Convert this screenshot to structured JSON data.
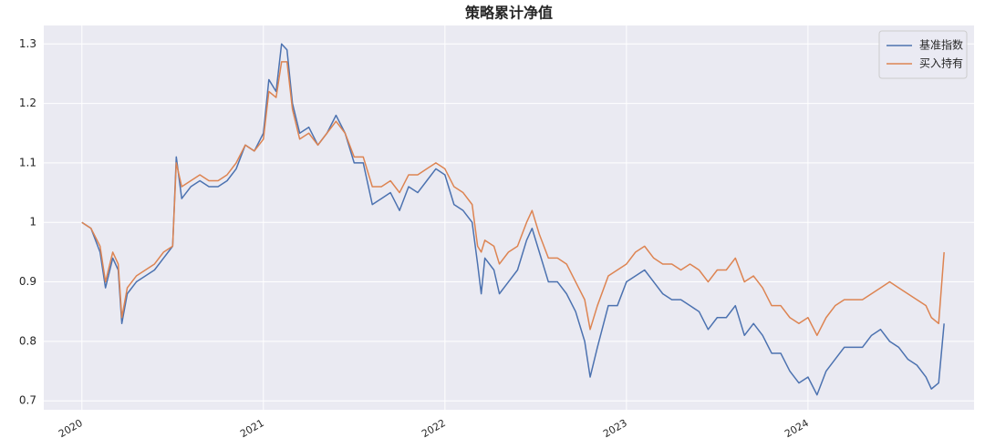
{
  "chart_data": {
    "type": "line",
    "title": "策略累计净值",
    "x": [
      2020.0,
      2020.05,
      2020.1,
      2020.13,
      2020.17,
      2020.2,
      2020.22,
      2020.25,
      2020.3,
      2020.35,
      2020.4,
      2020.45,
      2020.5,
      2020.52,
      2020.55,
      2020.6,
      2020.65,
      2020.7,
      2020.75,
      2020.8,
      2020.85,
      2020.9,
      2020.95,
      2021.0,
      2021.03,
      2021.07,
      2021.1,
      2021.13,
      2021.16,
      2021.2,
      2021.25,
      2021.3,
      2021.35,
      2021.4,
      2021.45,
      2021.5,
      2021.55,
      2021.6,
      2021.65,
      2021.7,
      2021.75,
      2021.8,
      2021.85,
      2021.9,
      2021.95,
      2022.0,
      2022.05,
      2022.1,
      2022.15,
      2022.18,
      2022.2,
      2022.22,
      2022.27,
      2022.3,
      2022.35,
      2022.4,
      2022.45,
      2022.48,
      2022.52,
      2022.57,
      2022.62,
      2022.67,
      2022.72,
      2022.77,
      2022.8,
      2022.84,
      2022.9,
      2022.95,
      2023.0,
      2023.05,
      2023.1,
      2023.15,
      2023.2,
      2023.25,
      2023.3,
      2023.35,
      2023.4,
      2023.45,
      2023.5,
      2023.55,
      2023.6,
      2023.65,
      2023.7,
      2023.75,
      2023.8,
      2023.85,
      2023.9,
      2023.95,
      2024.0,
      2024.05,
      2024.1,
      2024.15,
      2024.2,
      2024.25,
      2024.3,
      2024.35,
      2024.4,
      2024.45,
      2024.5,
      2024.55,
      2024.6,
      2024.65,
      2024.68,
      2024.72,
      2024.75
    ],
    "series": [
      {
        "name": "基准指数",
        "color": "#4c72b0",
        "values": [
          1.0,
          0.99,
          0.95,
          0.89,
          0.94,
          0.92,
          0.83,
          0.88,
          0.9,
          0.91,
          0.92,
          0.94,
          0.96,
          1.11,
          1.04,
          1.06,
          1.07,
          1.06,
          1.06,
          1.07,
          1.09,
          1.13,
          1.12,
          1.15,
          1.24,
          1.22,
          1.3,
          1.29,
          1.2,
          1.15,
          1.16,
          1.13,
          1.15,
          1.18,
          1.15,
          1.1,
          1.1,
          1.03,
          1.04,
          1.05,
          1.02,
          1.06,
          1.05,
          1.07,
          1.09,
          1.08,
          1.03,
          1.02,
          1.0,
          0.93,
          0.88,
          0.94,
          0.92,
          0.88,
          0.9,
          0.92,
          0.97,
          0.99,
          0.95,
          0.9,
          0.9,
          0.88,
          0.85,
          0.8,
          0.74,
          0.79,
          0.86,
          0.86,
          0.9,
          0.91,
          0.92,
          0.9,
          0.88,
          0.87,
          0.87,
          0.86,
          0.85,
          0.82,
          0.84,
          0.84,
          0.86,
          0.81,
          0.83,
          0.81,
          0.78,
          0.78,
          0.75,
          0.73,
          0.74,
          0.71,
          0.75,
          0.77,
          0.79,
          0.79,
          0.79,
          0.81,
          0.82,
          0.8,
          0.79,
          0.77,
          0.76,
          0.74,
          0.72,
          0.73,
          0.83
        ]
      },
      {
        "name": "买入持有",
        "color": "#dd8452",
        "values": [
          1.0,
          0.99,
          0.96,
          0.9,
          0.95,
          0.93,
          0.84,
          0.89,
          0.91,
          0.92,
          0.93,
          0.95,
          0.96,
          1.1,
          1.06,
          1.07,
          1.08,
          1.07,
          1.07,
          1.08,
          1.1,
          1.13,
          1.12,
          1.14,
          1.22,
          1.21,
          1.27,
          1.27,
          1.19,
          1.14,
          1.15,
          1.13,
          1.15,
          1.17,
          1.15,
          1.11,
          1.11,
          1.06,
          1.06,
          1.07,
          1.05,
          1.08,
          1.08,
          1.09,
          1.1,
          1.09,
          1.06,
          1.05,
          1.03,
          0.96,
          0.95,
          0.97,
          0.96,
          0.93,
          0.95,
          0.96,
          1.0,
          1.02,
          0.98,
          0.94,
          0.94,
          0.93,
          0.9,
          0.87,
          0.82,
          0.86,
          0.91,
          0.92,
          0.93,
          0.95,
          0.96,
          0.94,
          0.93,
          0.93,
          0.92,
          0.93,
          0.92,
          0.9,
          0.92,
          0.92,
          0.94,
          0.9,
          0.91,
          0.89,
          0.86,
          0.86,
          0.84,
          0.83,
          0.84,
          0.81,
          0.84,
          0.86,
          0.87,
          0.87,
          0.87,
          0.88,
          0.89,
          0.9,
          0.89,
          0.88,
          0.87,
          0.86,
          0.84,
          0.83,
          0.95
        ]
      }
    ],
    "xlim": [
      2019.79,
      2024.915
    ],
    "xticks": [
      2020,
      2021,
      2022,
      2023,
      2024
    ],
    "ylim": [
      0.685,
      1.331
    ],
    "yticks": [
      0.7,
      0.8,
      0.9,
      1.0,
      1.1,
      1.2,
      1.3
    ],
    "grid": true,
    "legend": "upper right"
  }
}
